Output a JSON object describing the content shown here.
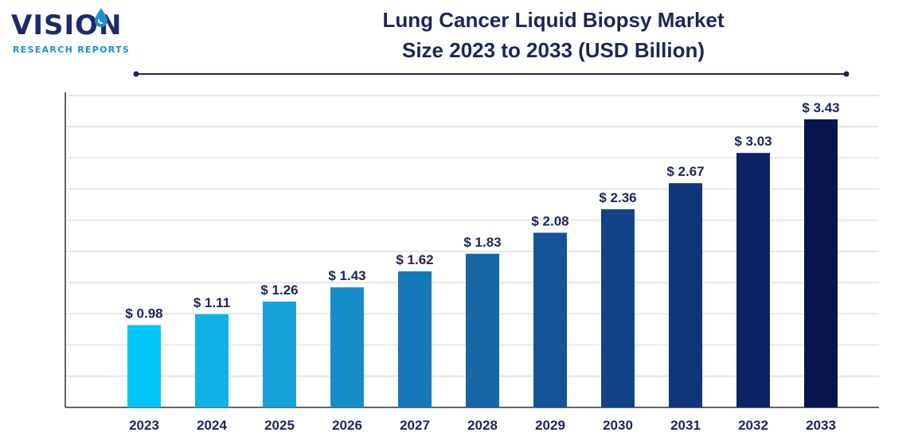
{
  "brand": {
    "name": "VISION",
    "tagline": "RESEARCH REPORTS"
  },
  "header": {
    "title_line1": "Lung Cancer Liquid Biopsy Market",
    "title_line2": "Size 2023 to 2033 (USD Billion)"
  },
  "colors": {
    "title": "#1d2656",
    "label": "#1d2656",
    "grid": "#e6e6e6",
    "axis": "#333333",
    "bars": [
      "#00c6f5",
      "#0fb2e6",
      "#16a1d9",
      "#168cc8",
      "#1578b8",
      "#1766a8",
      "#155499",
      "#124388",
      "#103478",
      "#0b2466",
      "#07144e"
    ]
  },
  "chart_data": {
    "type": "bar",
    "title": "Lung Cancer Liquid Biopsy Market Size 2023 to 2033 (USD Billion)",
    "xlabel": "",
    "ylabel": "",
    "categories": [
      "2023",
      "2024",
      "2025",
      "2026",
      "2027",
      "2028",
      "2029",
      "2030",
      "2031",
      "2032",
      "2033"
    ],
    "values": [
      0.98,
      1.11,
      1.26,
      1.43,
      1.62,
      1.83,
      2.08,
      2.36,
      2.67,
      3.03,
      3.43
    ],
    "value_labels": [
      "$ 0.98",
      "$ 1.11",
      "$ 1.26",
      "$ 1.43",
      "$ 1.62",
      "$ 1.83",
      "$ 2.08",
      "$ 2.36",
      "$ 2.67",
      "$ 3.03",
      "$ 3.43"
    ],
    "ylim": [
      0,
      3.43
    ],
    "grid": true,
    "legend": "none"
  }
}
